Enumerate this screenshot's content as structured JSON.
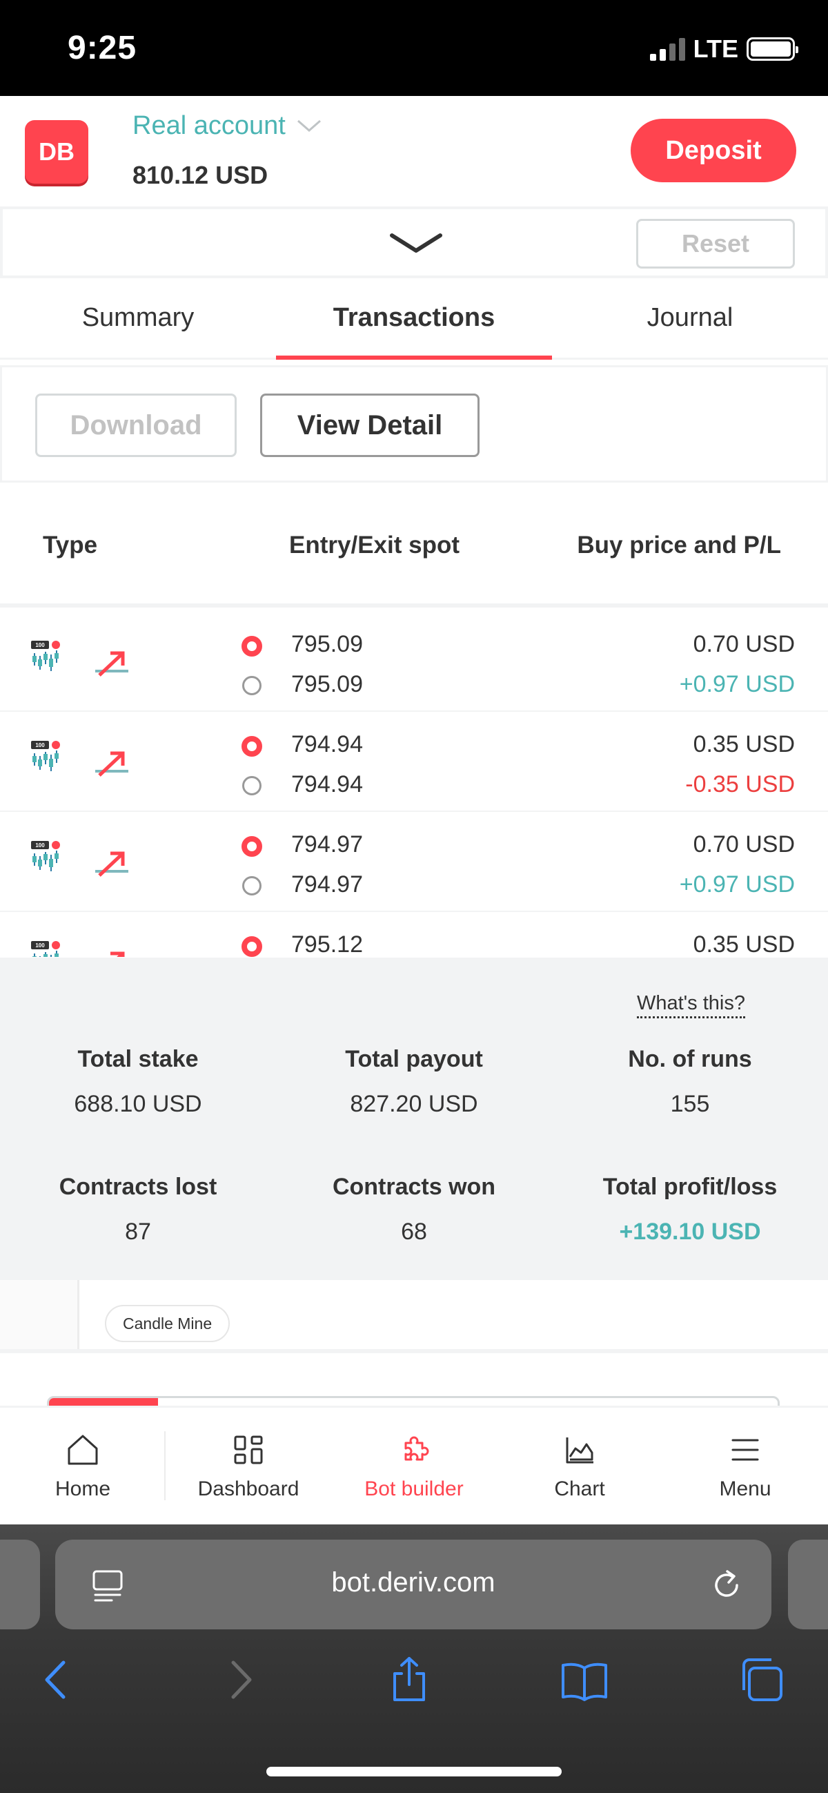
{
  "status_bar": {
    "time": "9:25",
    "network": "LTE",
    "signal_bars": 2
  },
  "header": {
    "logo_text": "DB",
    "account_type": "Real account",
    "balance": "810.12 USD",
    "deposit_label": "Deposit"
  },
  "toolbar": {
    "reset_label": "Reset"
  },
  "tabs": [
    {
      "label": "Summary",
      "active": false
    },
    {
      "label": "Transactions",
      "active": true
    },
    {
      "label": "Journal",
      "active": false
    }
  ],
  "actions": {
    "download_label": "Download",
    "view_detail_label": "View Detail"
  },
  "table": {
    "columns": [
      "Type",
      "Entry/Exit spot",
      "Buy price and P/L"
    ],
    "rows": [
      {
        "entry_spot": "795.09",
        "exit_spot": "795.09",
        "buy_price": "0.70 USD",
        "pnl": "+0.97 USD",
        "result": "profit"
      },
      {
        "entry_spot": "794.94",
        "exit_spot": "794.94",
        "buy_price": "0.35 USD",
        "pnl": "-0.35 USD",
        "result": "loss"
      },
      {
        "entry_spot": "794.97",
        "exit_spot": "794.97",
        "buy_price": "0.70 USD",
        "pnl": "+0.97 USD",
        "result": "profit"
      },
      {
        "entry_spot": "795.12",
        "exit_spot": "",
        "buy_price": "0.35 USD",
        "pnl": "",
        "result": ""
      }
    ]
  },
  "summary": {
    "whats_this": "What's this?",
    "total_stake_label": "Total stake",
    "total_stake": "688.10 USD",
    "total_payout_label": "Total payout",
    "total_payout": "827.20 USD",
    "runs_label": "No. of runs",
    "runs": "155",
    "lost_label": "Contracts lost",
    "lost": "87",
    "won_label": "Contracts won",
    "won": "68",
    "profit_label": "Total profit/loss",
    "profit": "+139.10 USD"
  },
  "workspace": {
    "block_chip": "Candle Mine",
    "progress_fraction": 0.15
  },
  "bottom_nav": [
    {
      "label": "Home",
      "icon": "home-icon",
      "active": false
    },
    {
      "label": "Dashboard",
      "icon": "dashboard-icon",
      "active": false
    },
    {
      "label": "Bot builder",
      "icon": "puzzle-icon",
      "active": true
    },
    {
      "label": "Chart",
      "icon": "chart-icon",
      "active": false
    },
    {
      "label": "Menu",
      "icon": "menu-icon",
      "active": false
    }
  ],
  "browser": {
    "url": "bot.deriv.com"
  },
  "colors": {
    "brand_red": "#ff444f",
    "profit_teal": "#4bb4b3",
    "loss_red": "#ec3f3f",
    "panel_grey": "#f2f3f4"
  }
}
